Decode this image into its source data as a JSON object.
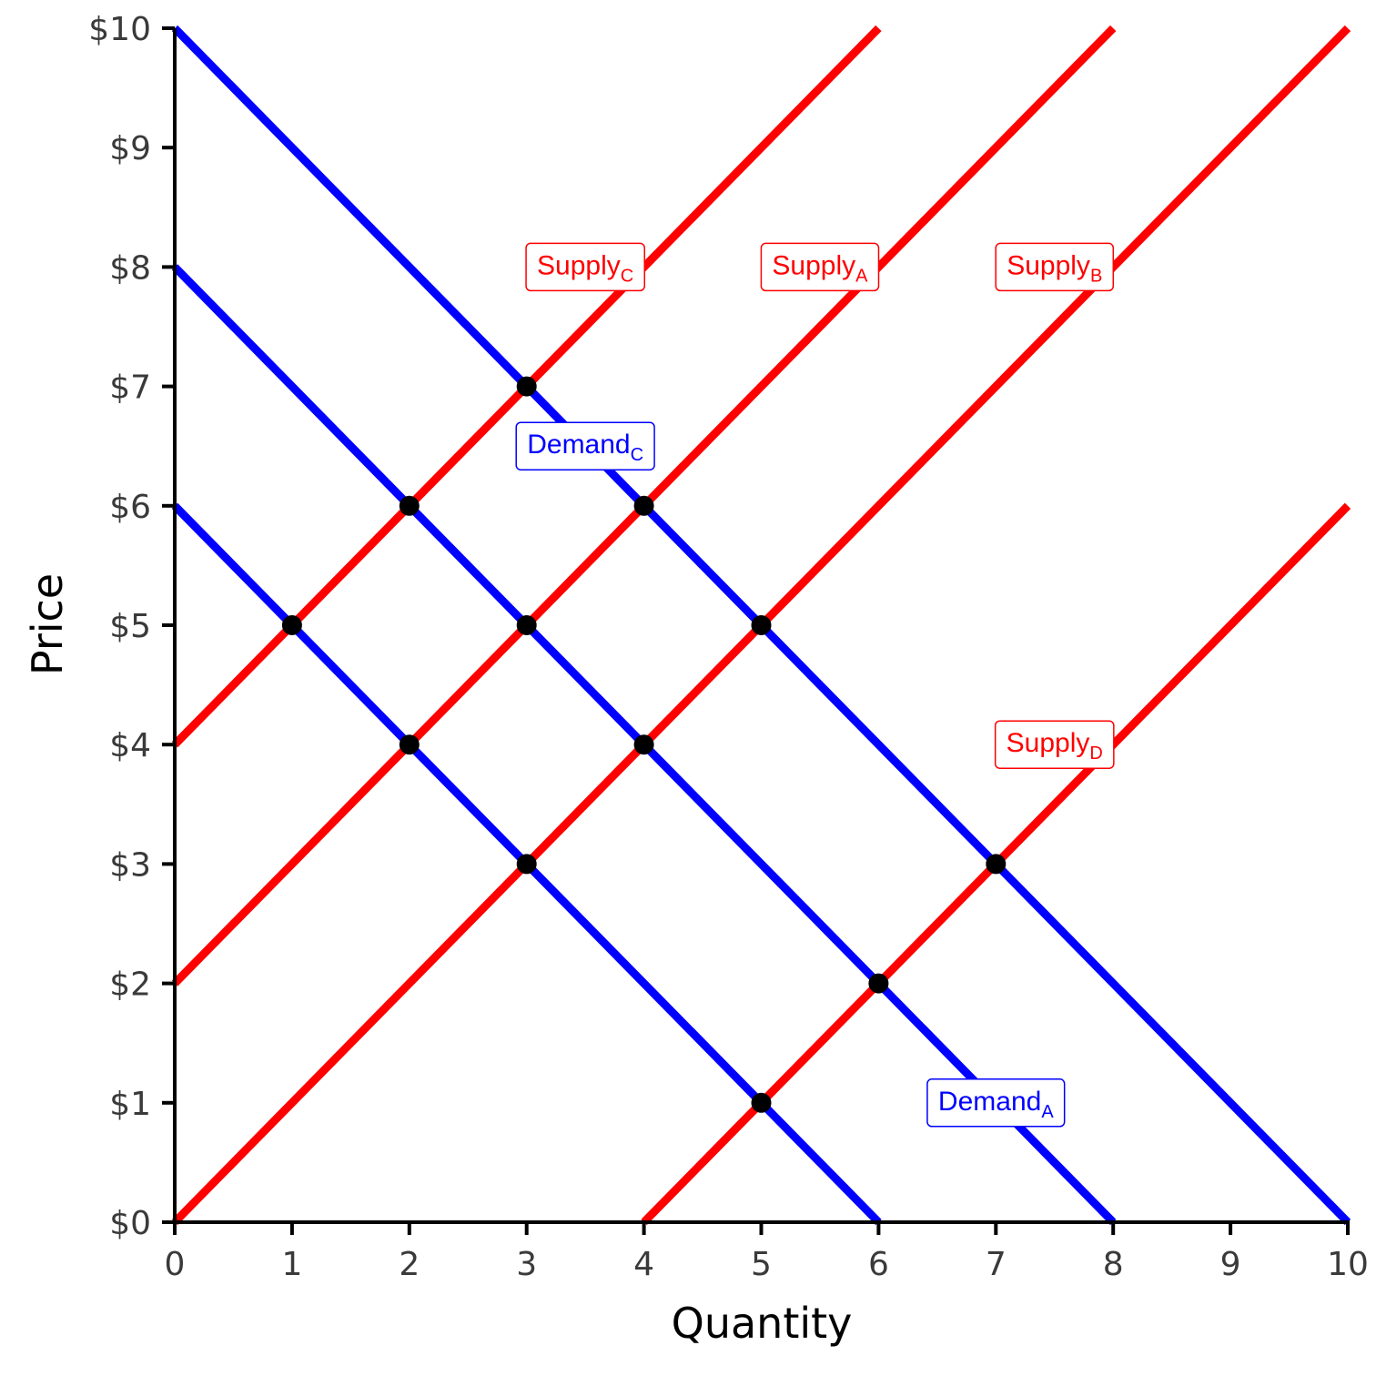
{
  "chart_data": {
    "type": "line",
    "xlabel": "Quantity",
    "ylabel": "Price",
    "xlim": [
      0,
      10
    ],
    "ylim": [
      0,
      10
    ],
    "x_ticks": [
      "0",
      "1",
      "2",
      "3",
      "4",
      "5",
      "6",
      "7",
      "8",
      "9",
      "10"
    ],
    "y_ticks": [
      "$0",
      "$1",
      "$2",
      "$3",
      "$4",
      "$5",
      "$6",
      "$7",
      "$8",
      "$9",
      "$10"
    ],
    "grid": false,
    "colors": {
      "supply": "#ff0000",
      "demand": "#0000ff",
      "points": "#000000"
    },
    "supply_curves": [
      {
        "name": "Supply",
        "sub": "C",
        "x": [
          0,
          6
        ],
        "y": [
          4,
          10
        ],
        "label_at": [
          3.5,
          8
        ]
      },
      {
        "name": "Supply",
        "sub": "A",
        "x": [
          0,
          8
        ],
        "y": [
          2,
          10
        ],
        "label_at": [
          5.5,
          8
        ]
      },
      {
        "name": "Supply",
        "sub": "B",
        "x": [
          0,
          10
        ],
        "y": [
          0,
          10
        ],
        "label_at": [
          7.5,
          8
        ]
      },
      {
        "name": "Supply",
        "sub": "D",
        "x": [
          4,
          10
        ],
        "y": [
          0,
          6
        ],
        "label_at": [
          7.5,
          4
        ]
      }
    ],
    "demand_curves": [
      {
        "x": [
          0,
          10
        ],
        "y": [
          10,
          0
        ]
      },
      {
        "name": "Demand",
        "sub": "A",
        "x": [
          0,
          8
        ],
        "y": [
          8,
          0
        ],
        "label_at": [
          7,
          1
        ]
      },
      {
        "x": [
          0,
          6
        ],
        "y": [
          6,
          0
        ]
      }
    ],
    "demand_labels": [
      {
        "name": "Demand",
        "sub": "C",
        "at": [
          3.5,
          6.5
        ]
      }
    ],
    "points": [
      [
        3,
        7
      ],
      [
        2,
        6
      ],
      [
        4,
        6
      ],
      [
        1,
        5
      ],
      [
        3,
        5
      ],
      [
        5,
        5
      ],
      [
        2,
        4
      ],
      [
        4,
        4
      ],
      [
        3,
        3
      ],
      [
        7,
        3
      ],
      [
        6,
        2
      ],
      [
        5,
        1
      ]
    ]
  }
}
